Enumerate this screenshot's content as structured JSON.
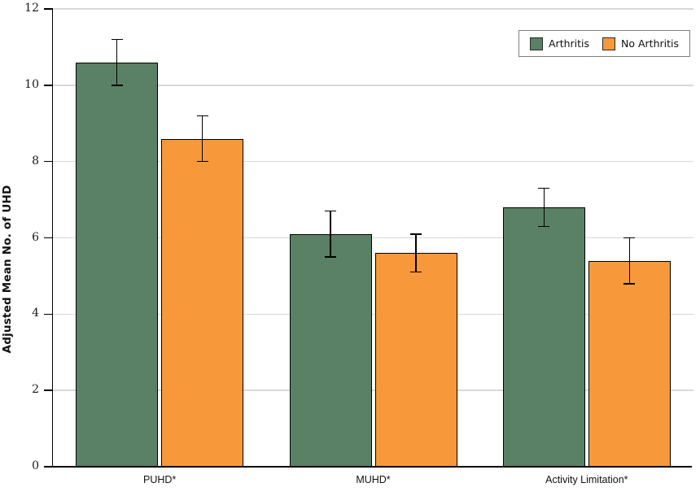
{
  "chart_data": {
    "type": "bar",
    "title": "",
    "xlabel": "",
    "ylabel": "Adjusted Mean No. of UHD",
    "ylim": [
      0,
      12
    ],
    "yticks": [
      0,
      2,
      4,
      6,
      8,
      10,
      12
    ],
    "grid": true,
    "legend_position": "top-right",
    "categories": [
      "PUHD*",
      "MUHD*",
      "Activity Limitation*"
    ],
    "series": [
      {
        "name": "Arthritis",
        "color": "#5a8165",
        "values": [
          10.6,
          6.1,
          6.8
        ],
        "error_low": [
          10.0,
          5.5,
          6.3
        ],
        "error_high": [
          11.2,
          6.7,
          7.3
        ]
      },
      {
        "name": "No Arthritis",
        "color": "#f7993a",
        "values": [
          8.6,
          5.6,
          5.4
        ],
        "error_low": [
          8.0,
          5.1,
          4.8
        ],
        "error_high": [
          9.2,
          6.1,
          6.0
        ]
      }
    ],
    "colors": {
      "grid": "#d9d9d9",
      "axis": "#000000",
      "bar_border": "#000000",
      "error_bar": "#000000",
      "legend_border": "#7f7f7f",
      "background": "#ffffff"
    }
  }
}
